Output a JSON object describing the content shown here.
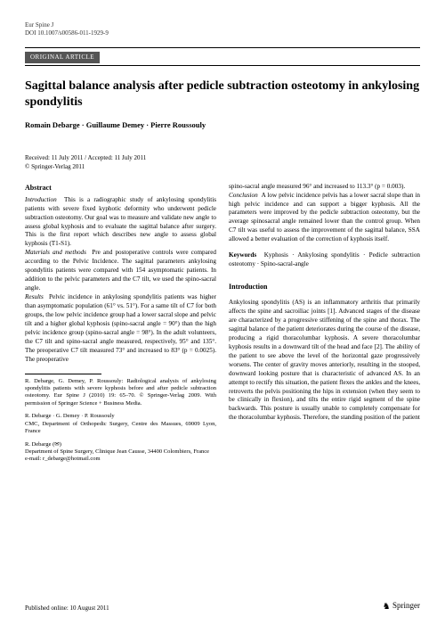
{
  "journal": "Eur Spine J",
  "doi": "DOI 10.1007/s00586-011-1929-9",
  "article_type": "ORIGINAL ARTICLE",
  "title": "Sagittal balance analysis after pedicle subtraction osteotomy in ankylosing spondylitis",
  "authors": "Romain Debarge · Guillaume Demey · Pierre Roussouly",
  "received": "Received: 11 July 2011 / Accepted: 11 July 2011",
  "copyright": "© Springer-Verlag 2011",
  "abstract_label": "Abstract",
  "abstract": {
    "intro_label": "Introduction",
    "intro": "This is a radiographic study of ankylosing spondylitis patients with severe fixed kyphotic deformity who underwent pedicle subtraction osteotomy. Our goal was to measure and validate new angle to assess global kyphosis and to evaluate the sagittal balance after surgery. This is the first report which describes new angle to assess global kyphosis (T1-S1).",
    "mm_label": "Materials and methods",
    "mm": "Pre and postoperative controls were compared according to the Pelvic Incidence. The sagittal parameters ankylosing spondylitis patients were compared with 154 asymptomatic patients. In addition to the pelvic parameters and the C7 tilt, we used the spino-sacral angle.",
    "res_label": "Results",
    "res": "Pelvic incidence in ankylosing spondylitis patients was higher than asymptomatic population (61° vs. 51°). For a same tilt of C7 for both groups, the low pelvic incidence group had a lower sacral slope and pelvic tilt and a higher global kyphosis (spino-sacral angle = 90°) than the high pelvic incidence group (spino-sacral angle = 98°). In the adult volunteers, the C7 tilt and spino-sacral angle measured, respectively, 95° and 135°. The preoperative C7 tilt measured 73° and increased to 83° (p = 0.0025). The preoperative",
    "res2": "spino-sacral angle measured 96° and increased to 113.3° (p = 0.003).",
    "conc_label": "Conclusion",
    "conc": "A low pelvic incidence pelvis has a lower sacral slope than in high pelvic incidence and can support a bigger kyphosis. All the parameters were improved by the pedicle subtraction osteotomy, but the average spinosacral angle remained lower than the control group. When C7 tilt was useful to assess the improvement of the sagittal balance, SSA allowed a better evaluation of the correction of kyphosis itself."
  },
  "keywords_label": "Keywords",
  "keywords": "Kyphosis · Ankylosing spondylitis · Pedicle subtraction osteotomy · Spino-sacral-angle",
  "introduction_label": "Introduction",
  "introduction": "Ankylosing spondylitis (AS) is an inflammatory arthritis that primarily affects the spine and sacroiliac joints [1]. Advanced stages of the disease are characterized by a progressive stiffening of the spine and thorax. The sagittal balance of the patient deteriorates during the course of the disease, producing a rigid thoracolumbar kyphosis. A severe thoracolumbar kyphosis results in a downward tilt of the head and face [2]. The ability of the patient to see above the level of the horizontal gaze progressively worsens. The center of gravity moves anteriorly, resulting in the stooped, downward looking posture that is characteristic of advanced AS. In an attempt to rectify this situation, the patient flexes the ankles and the knees, retroverts the pelvis positioning the hips in extension (when they seem to be clinically in flexion), and tilts the entire rigid segment of the spine backwards. This posture is usually unable to completely compensate for the thoracolumbar kyphosis. Therefore, the standing position of the patient",
  "affil1": "R. Debarge, G. Demey, P. Roussouly: Radiological analysis of ankylosing spondylitis patients with severe kyphosis before and after pedicle subtraction osteotomy. Eur Spine J (2010) 19: 65–70. © Springer-Verlag 2009. With permission of Springer Science + Business Media.",
  "affil2_names": "R. Debarge · G. Demey · P. Roussouly",
  "affil2_addr": "CMC, Department of Orthopedic Surgery, Centre des Massues, 69009 Lyon, France",
  "affil3_names": "R. Debarge (✉)",
  "affil3_addr": "Department of Spine Surgery, Clinique Jean Causse, 34400 Colombiers, France",
  "affil3_email": "e-mail: r_debarge@hotmail.com",
  "pub_online": "Published online: 10 August 2011",
  "publisher": "Springer"
}
